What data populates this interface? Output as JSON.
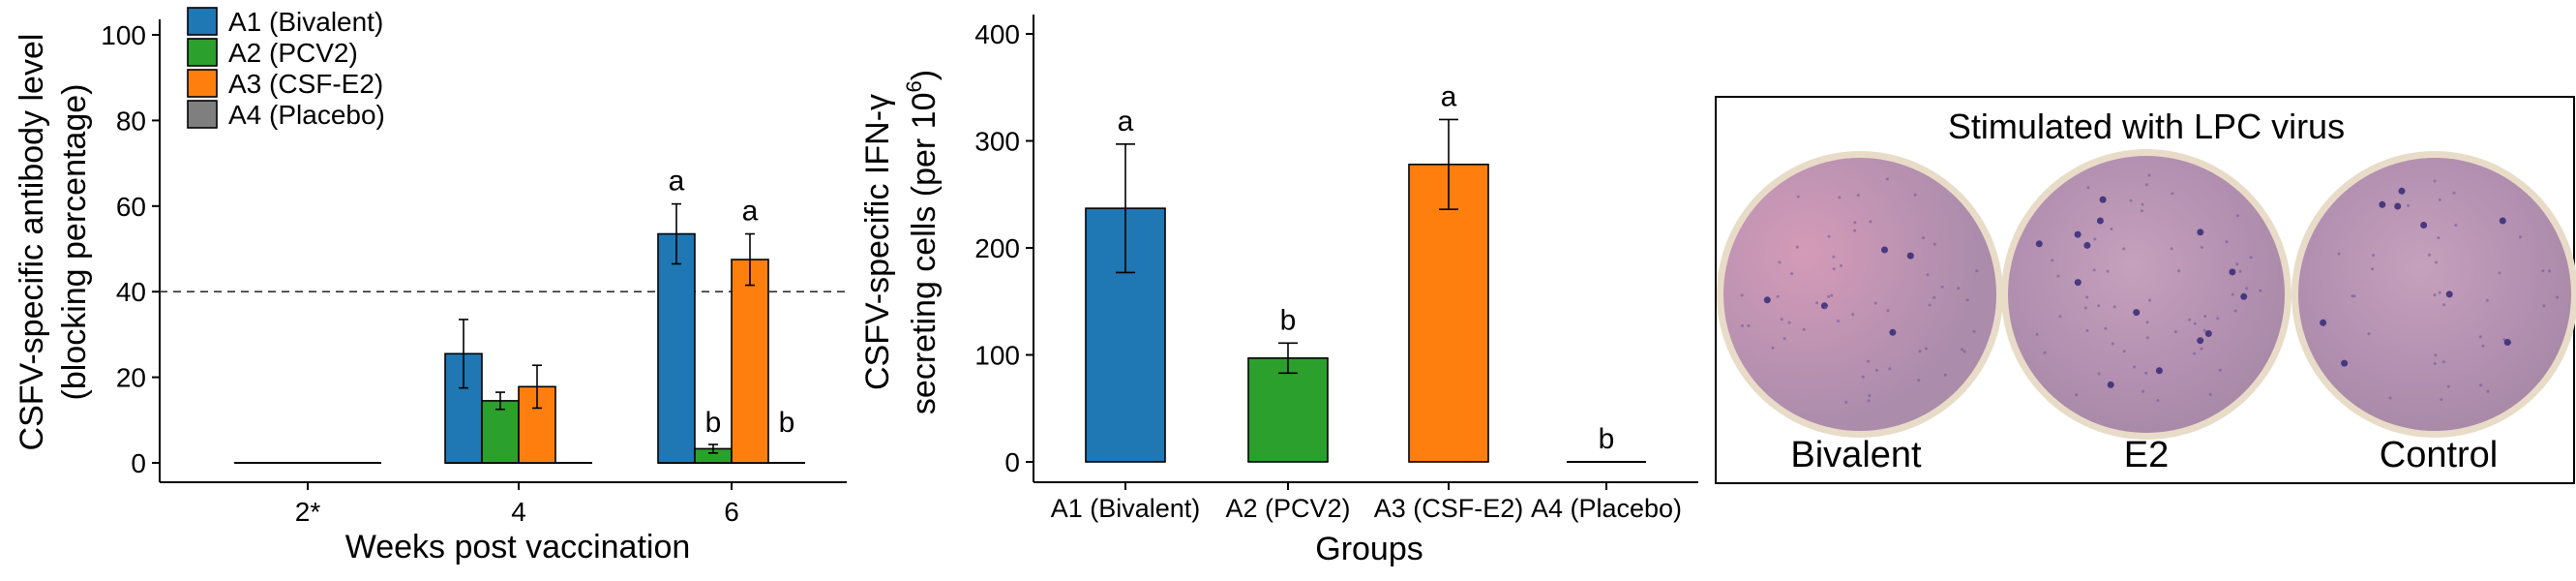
{
  "chart_data": [
    {
      "type": "bar",
      "xlabel": "Weeks post vaccination",
      "ylabel_line1": "CSFV-specific antibody level",
      "ylabel_line2": "(blocking percentage)",
      "categories": [
        "2*",
        "4",
        "6"
      ],
      "ylim": [
        0,
        100
      ],
      "yticks": [
        "0",
        "20",
        "40",
        "60",
        "80",
        "100"
      ],
      "threshold": 40,
      "legend_position": "top-left",
      "series": [
        {
          "name": "A1 (Bivalent)",
          "color": "#1f77b4",
          "values": [
            0,
            25.5,
            53.5
          ],
          "errors": [
            0,
            8,
            7
          ],
          "labels": [
            "",
            "",
            "a"
          ]
        },
        {
          "name": "A2 (PCV2)",
          "color": "#2ca02c",
          "values": [
            0,
            14.5,
            3.3
          ],
          "errors": [
            0,
            2,
            1
          ],
          "labels": [
            "",
            "",
            "b"
          ]
        },
        {
          "name": "A3 (CSF-E2)",
          "color": "#ff7f0e",
          "values": [
            0,
            17.8,
            47.5
          ],
          "errors": [
            0,
            5,
            6
          ],
          "labels": [
            "",
            "",
            "a"
          ]
        },
        {
          "name": "A4 (Placebo)",
          "color": "#7f7f7f",
          "values": [
            0,
            0,
            0
          ],
          "errors": [
            0,
            0,
            0
          ],
          "labels": [
            "",
            "",
            "b"
          ]
        }
      ]
    },
    {
      "type": "bar",
      "xlabel": "Groups",
      "ylabel_line1": "CSFV-specific IFN-γ",
      "ylabel_line2_prefix": "secreting cells (per 10",
      "ylabel_line2_sup": "6",
      "ylabel_line2_suffix": ")",
      "categories": [
        "A1 (Bivalent)",
        "A2 (PCV2)",
        "A3 (CSF-E2)",
        "A4 (Placebo)"
      ],
      "colors": [
        "#1f77b4",
        "#2ca02c",
        "#ff7f0e",
        "#7f7f7f"
      ],
      "values": [
        237,
        97,
        278,
        0
      ],
      "errors": [
        60,
        14,
        42,
        0
      ],
      "labels": [
        "a",
        "b",
        "a",
        "b"
      ],
      "ylim": [
        0,
        420
      ],
      "yticks": [
        "0",
        "100",
        "200",
        "300",
        "400"
      ]
    }
  ],
  "photo": {
    "title": "Stimulated with LPC virus",
    "labels": [
      "Bivalent",
      "E2",
      "Control"
    ]
  }
}
